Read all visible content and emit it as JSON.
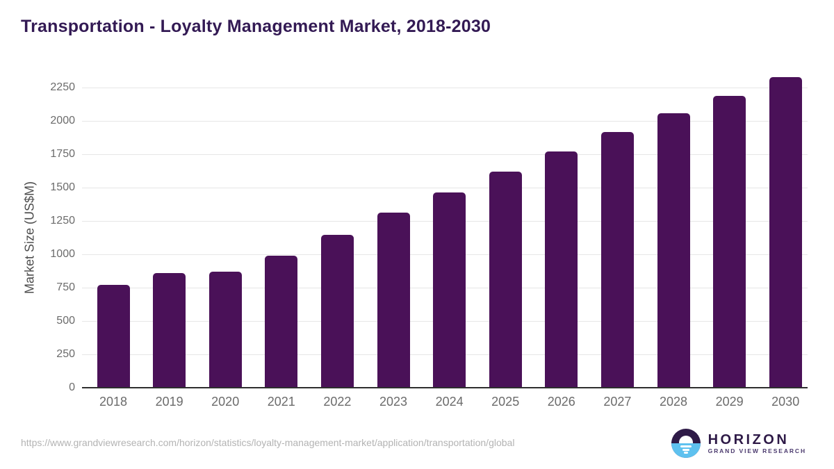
{
  "page": {
    "title": "Transportation - Loyalty Management Market, 2018-2030"
  },
  "chart_data": {
    "type": "bar",
    "title": "Transportation - Loyalty Management Market, 2018-2030",
    "xlabel": "",
    "ylabel": "Market Size (US$M)",
    "categories": [
      "2018",
      "2019",
      "2020",
      "2021",
      "2022",
      "2023",
      "2024",
      "2025",
      "2026",
      "2027",
      "2028",
      "2029",
      "2030"
    ],
    "values": [
      770,
      860,
      870,
      990,
      1145,
      1315,
      1465,
      1620,
      1770,
      1915,
      2055,
      2190,
      2330
    ],
    "ylim": [
      0,
      2400
    ],
    "yticks": [
      0,
      250,
      500,
      750,
      1000,
      1250,
      1500,
      1750,
      2000,
      2250
    ],
    "grid": true,
    "legend": false,
    "bar_color": "#4a1158"
  },
  "footer": {
    "source_url": "https://www.grandviewresearch.com/horizon/statistics/loyalty-management-market/application/transportation/global",
    "logo": {
      "name": "HORIZON",
      "subtitle": "GRAND VIEW RESEARCH"
    }
  },
  "colors": {
    "title": "#331a54",
    "bar": "#4a1158",
    "gridline": "#e6e6e6",
    "axis_line": "#2e2e2e",
    "tick_label": "#6b6b6b",
    "axis_title": "#4d4d4d",
    "source_url": "#b3b3b3",
    "logo_dark": "#2e1a47",
    "logo_blue": "#5ec1ef"
  }
}
